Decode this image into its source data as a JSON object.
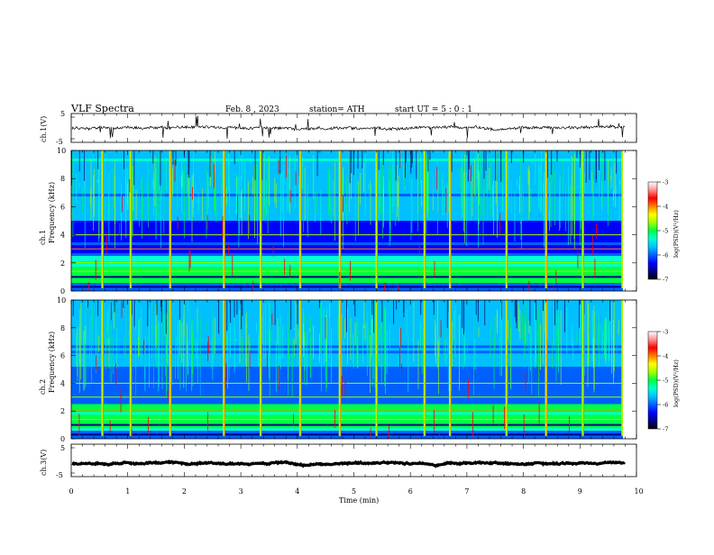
{
  "header": {
    "title": "VLF  Spectra",
    "date": "Feb. 8 , 2023",
    "station": "station= ATH",
    "start_ut": "start  UT  =   5  : 0  : 1"
  },
  "colors": {
    "colormap": [
      "#000000",
      "#00008b",
      "#0000ff",
      "#0060ff",
      "#00c0ff",
      "#00ffd0",
      "#00ff40",
      "#a0ff00",
      "#ffff00",
      "#ff8000",
      "#ff0000",
      "#ff9090",
      "#ffffff"
    ],
    "trace": "#000000",
    "axis": "#000000"
  },
  "chart_data": [
    {
      "type": "line",
      "panel": "ch1-waveform",
      "ylabel": "ch.1(V)",
      "yticks": [
        "5",
        "-5"
      ],
      "ylim": [
        -5,
        5
      ],
      "xlim": [
        0,
        10
      ],
      "baseline_v": 0,
      "data_end_min": 9.8
    },
    {
      "type": "heatmap",
      "panel": "ch1-spectrogram",
      "ylabel_top": "ch.1",
      "ylabel": "Frequency (kHz)",
      "yticks": [
        "0",
        "2",
        "4",
        "6",
        "8",
        "10"
      ],
      "ylim": [
        0,
        10
      ],
      "xlim": [
        0,
        10
      ],
      "colorbar": {
        "label": "log(PSD)(V²/Hz)",
        "ticks": [
          "-3",
          "-4",
          "-5",
          "-6",
          "-7"
        ],
        "range": [
          -7,
          -3
        ]
      },
      "bright_times_min": [
        0.55,
        1.05,
        1.75,
        2.7,
        3.35,
        4.05,
        4.75,
        5.4,
        6.25,
        6.7,
        7.7,
        8.4,
        9.05,
        9.75
      ],
      "band_lines_khz": [
        0.3,
        1.0,
        1.4,
        2.0,
        3.0,
        4.0
      ]
    },
    {
      "type": "heatmap",
      "panel": "ch2-spectrogram",
      "ylabel_top": "ch.2",
      "ylabel": "Frequency (kHz)",
      "yticks": [
        "0",
        "2",
        "4",
        "6",
        "8",
        "10"
      ],
      "ylim": [
        0,
        10
      ],
      "xlim": [
        0,
        10
      ],
      "colorbar": {
        "label": "log(PSD)(V²/Hz)",
        "ticks": [
          "-3",
          "-4",
          "-5",
          "-6",
          "-7"
        ],
        "range": [
          -7,
          -3
        ]
      },
      "bright_times_min": [
        0.55,
        1.05,
        1.75,
        2.7,
        3.35,
        4.05,
        4.75,
        5.4,
        6.25,
        6.7,
        7.7,
        8.4,
        9.05,
        9.75
      ],
      "band_lines_khz": [
        0.3,
        1.0,
        1.4,
        2.0,
        3.0,
        4.0
      ]
    },
    {
      "type": "line",
      "panel": "ch3-waveform",
      "ylabel": "ch.3(V)",
      "yticks": [
        "5",
        "-5"
      ],
      "ylim": [
        -5,
        5
      ],
      "xlim": [
        0,
        10
      ],
      "baseline_v": -1,
      "data_end_min": 9.8
    }
  ],
  "xaxis": {
    "label": "Time  (min)",
    "ticks": [
      "0",
      "1",
      "2",
      "3",
      "4",
      "5",
      "6",
      "7",
      "8",
      "9",
      "10"
    ]
  }
}
